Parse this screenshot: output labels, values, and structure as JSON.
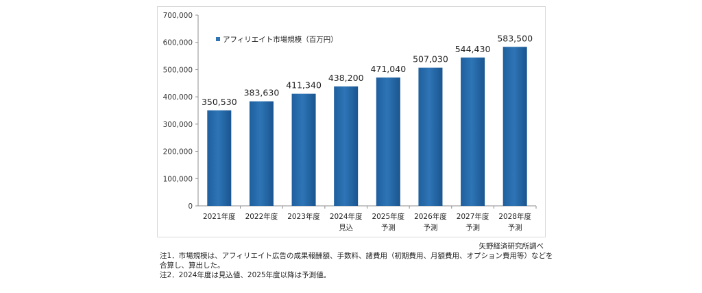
{
  "chart_data": {
    "type": "bar",
    "legend": {
      "label": "アフィリエイト市場規模（百万円）",
      "position": "top-left",
      "color": "#2e75b6"
    },
    "categories": [
      [
        "2021年度"
      ],
      [
        "2022年度"
      ],
      [
        "2023年度"
      ],
      [
        "2024年度",
        "見込"
      ],
      [
        "2025年度",
        "予測"
      ],
      [
        "2026年度",
        "予測"
      ],
      [
        "2027年度",
        "予測"
      ],
      [
        "2028年度",
        "予測"
      ]
    ],
    "series": [
      {
        "name": "アフィリエイト市場規模（百万円）",
        "values": [
          350530,
          383630,
          411340,
          438200,
          471040,
          507030,
          544430,
          583500
        ],
        "data_labels": [
          "350,530",
          "383,630",
          "411,340",
          "438,200",
          "471,040",
          "507,030",
          "544,430",
          "583,500"
        ]
      }
    ],
    "yticks": [
      "0",
      "100,000",
      "200,000",
      "300,000",
      "400,000",
      "500,000",
      "600,000",
      "700,000"
    ],
    "ylim": [
      0,
      700000
    ],
    "grid": false,
    "bar_color": "#2e75b6"
  },
  "notes": {
    "source": "矢野経済研究所調べ",
    "lines": [
      "注1．市場規模は、アフィリエイト広告の成果報酬額、手数料、諸費用（初期費用、月額費用、オプション費用等）などを",
      "合算し、算出した。",
      "注2．2024年度は見込値、2025年度以降は予測値。"
    ]
  }
}
